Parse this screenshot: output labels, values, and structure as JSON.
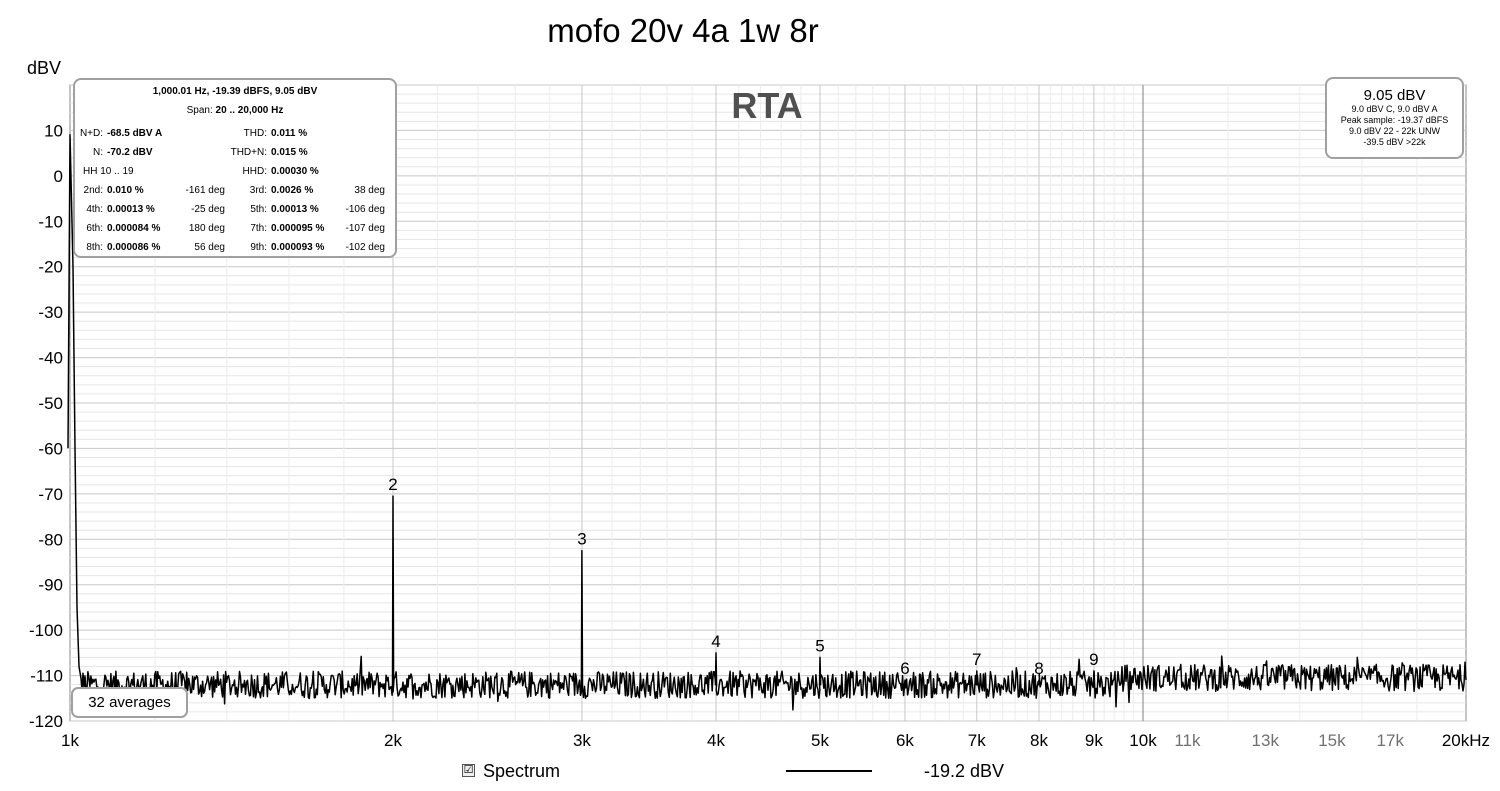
{
  "title": "mofo 20v 4a 1w 8r",
  "chart_data": {
    "type": "line",
    "title": "mofo 20v 4a 1w 8r",
    "subtitle": "RTA",
    "ylabel": "dBV",
    "xlabel": "",
    "x_unit": "kHz",
    "x_scale": "log",
    "xlim": [
      1000,
      20000
    ],
    "ylim": [
      -120,
      20
    ],
    "grid": true,
    "legend_position": "bottom",
    "y_ticks": [
      10,
      0,
      -10,
      -20,
      -30,
      -40,
      -50,
      -60,
      -70,
      -80,
      -90,
      -100,
      -110,
      -120
    ],
    "x_major_ticks": [
      {
        "value": 1000,
        "label": "1k"
      },
      {
        "value": 2000,
        "label": "2k"
      },
      {
        "value": 3000,
        "label": "3k"
      },
      {
        "value": 4000,
        "label": "4k"
      },
      {
        "value": 5000,
        "label": "5k"
      },
      {
        "value": 6000,
        "label": "6k"
      },
      {
        "value": 7000,
        "label": "7k"
      },
      {
        "value": 8000,
        "label": "8k"
      },
      {
        "value": 9000,
        "label": "9k"
      },
      {
        "value": 10000,
        "label": "10k"
      }
    ],
    "x_minor_ticks": [
      {
        "value": 11000,
        "label": "11k"
      },
      {
        "value": 13000,
        "label": "13k"
      },
      {
        "value": 15000,
        "label": "15k"
      },
      {
        "value": 17000,
        "label": "17k"
      },
      {
        "value": 20000,
        "label": "20kHz"
      }
    ],
    "series": [
      {
        "name": "Spectrum",
        "color": "#000000",
        "noise_floor_dbv": -112,
        "peaks": [
          {
            "freq": 1000,
            "dbv": 9.05,
            "label": ""
          },
          {
            "freq": 2000,
            "dbv": -70.5,
            "label": "2"
          },
          {
            "freq": 3000,
            "dbv": -82.5,
            "label": "3"
          },
          {
            "freq": 4000,
            "dbv": -105,
            "label": "4"
          },
          {
            "freq": 5000,
            "dbv": -106,
            "label": "5"
          },
          {
            "freq": 6000,
            "dbv": -111,
            "label": "6"
          },
          {
            "freq": 7000,
            "dbv": -109,
            "label": "7"
          },
          {
            "freq": 8000,
            "dbv": -111,
            "label": "8"
          },
          {
            "freq": 9000,
            "dbv": -109,
            "label": "9"
          }
        ]
      }
    ],
    "cursor_freq": 10000
  },
  "info_left": {
    "header": "1,000.01 Hz, -19.39 dBFS, 9.05 dBV",
    "span_label": "Span:",
    "span_value": "20 .. 20,000 Hz",
    "rows": [
      {
        "l1": "N+D:",
        "v1": "-68.5 dBV A",
        "l2": "THD:",
        "v2": "0.011 %"
      },
      {
        "l1": "N:",
        "v1": "-70.2 dBV",
        "l2": "THD+N:",
        "v2": "0.015 %"
      },
      {
        "l1": "HH 10 .. 19",
        "v1": "",
        "l2": "HHD:",
        "v2": "0.00030 %"
      },
      {
        "l1": "2nd:",
        "v1": "0.010 %",
        "d1": "-161 deg",
        "l2": "3rd:",
        "v2": "0.0026 %",
        "d2": "38 deg"
      },
      {
        "l1": "4th:",
        "v1": "0.00013 %",
        "d1": "-25 deg",
        "l2": "5th:",
        "v2": "0.00013 %",
        "d2": "-106 deg"
      },
      {
        "l1": "6th:",
        "v1": "0.000084 %",
        "d1": "180 deg",
        "l2": "7th:",
        "v2": "0.000095 %",
        "d2": "-107 deg"
      },
      {
        "l1": "8th:",
        "v1": "0.000086 %",
        "d1": "56 deg",
        "l2": "9th:",
        "v2": "0.000093 %",
        "d2": "-102 deg"
      }
    ]
  },
  "info_right": {
    "main": "9.05 dBV",
    "lines": [
      "9.0 dBV C, 9.0 dBV A",
      "Peak sample: -19.37 dBFS",
      "9.0 dBV 22 - 22k UNW",
      "-39.5 dBV >22k"
    ]
  },
  "averages": "32 averages",
  "legend": {
    "label": "Spectrum",
    "checked": "☑",
    "value": "-19.2 dBV"
  }
}
